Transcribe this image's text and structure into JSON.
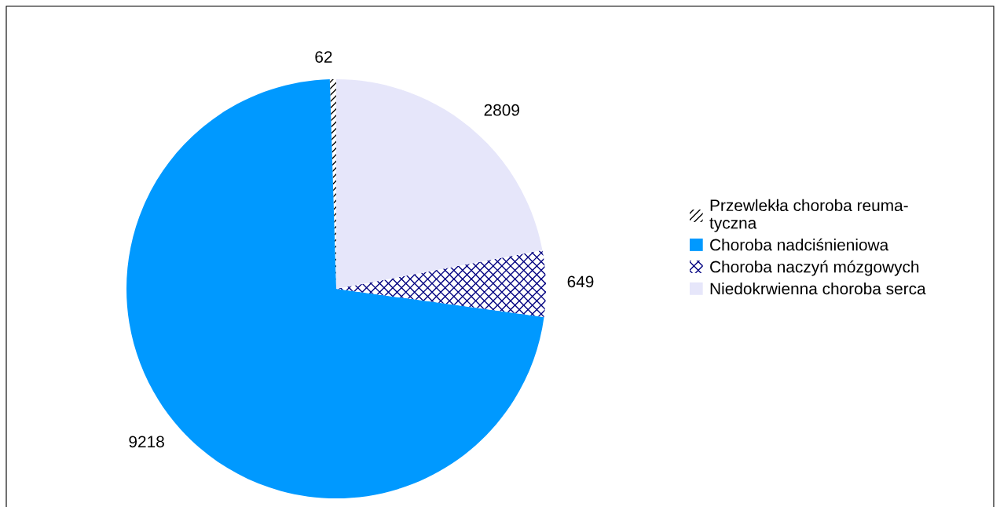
{
  "chart_data": {
    "type": "pie",
    "categories": [
      "Przewlekła choroba reuma-\ntyczna",
      "Choroba nadciśnieniowa",
      "Choroba naczyń mózgowych",
      "Niedokrwienna choroba serca"
    ],
    "values": [
      62,
      9218,
      649,
      2809
    ],
    "colors": [
      "#ffffff",
      "#0099ff",
      "#ffffff",
      "#e6e6fa"
    ],
    "data_labels": true,
    "legend": "right"
  }
}
